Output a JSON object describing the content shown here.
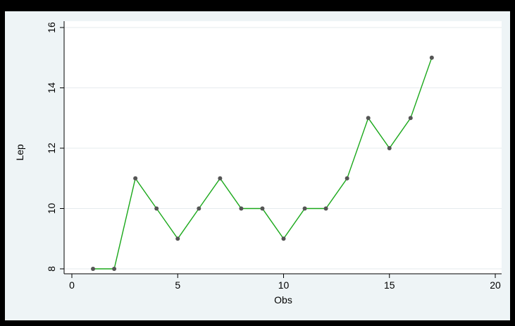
{
  "chart_data": {
    "type": "line",
    "title": "",
    "xlabel": "Obs",
    "ylabel": "Lep",
    "xlim": [
      0,
      20
    ],
    "ylim": [
      8,
      16
    ],
    "xticks": [
      0,
      5,
      10,
      15,
      20
    ],
    "yticks": [
      8,
      10,
      12,
      14,
      16
    ],
    "grid": true,
    "series": [
      {
        "x": [
          1,
          2,
          3,
          4,
          5,
          6,
          7,
          8,
          9,
          10,
          11,
          12,
          13,
          14,
          15,
          16,
          17
        ],
        "values": [
          8,
          8,
          11,
          10,
          9,
          10,
          11,
          10,
          10,
          9,
          10,
          10,
          11,
          13,
          12,
          13,
          15
        ],
        "line_color": "#1aa81a",
        "marker_color": "#555555"
      }
    ]
  },
  "colors": {
    "frame": "#000000",
    "panel": "#eef4f6",
    "plot_area": "#ffffff",
    "grid": "#e6ebee"
  }
}
